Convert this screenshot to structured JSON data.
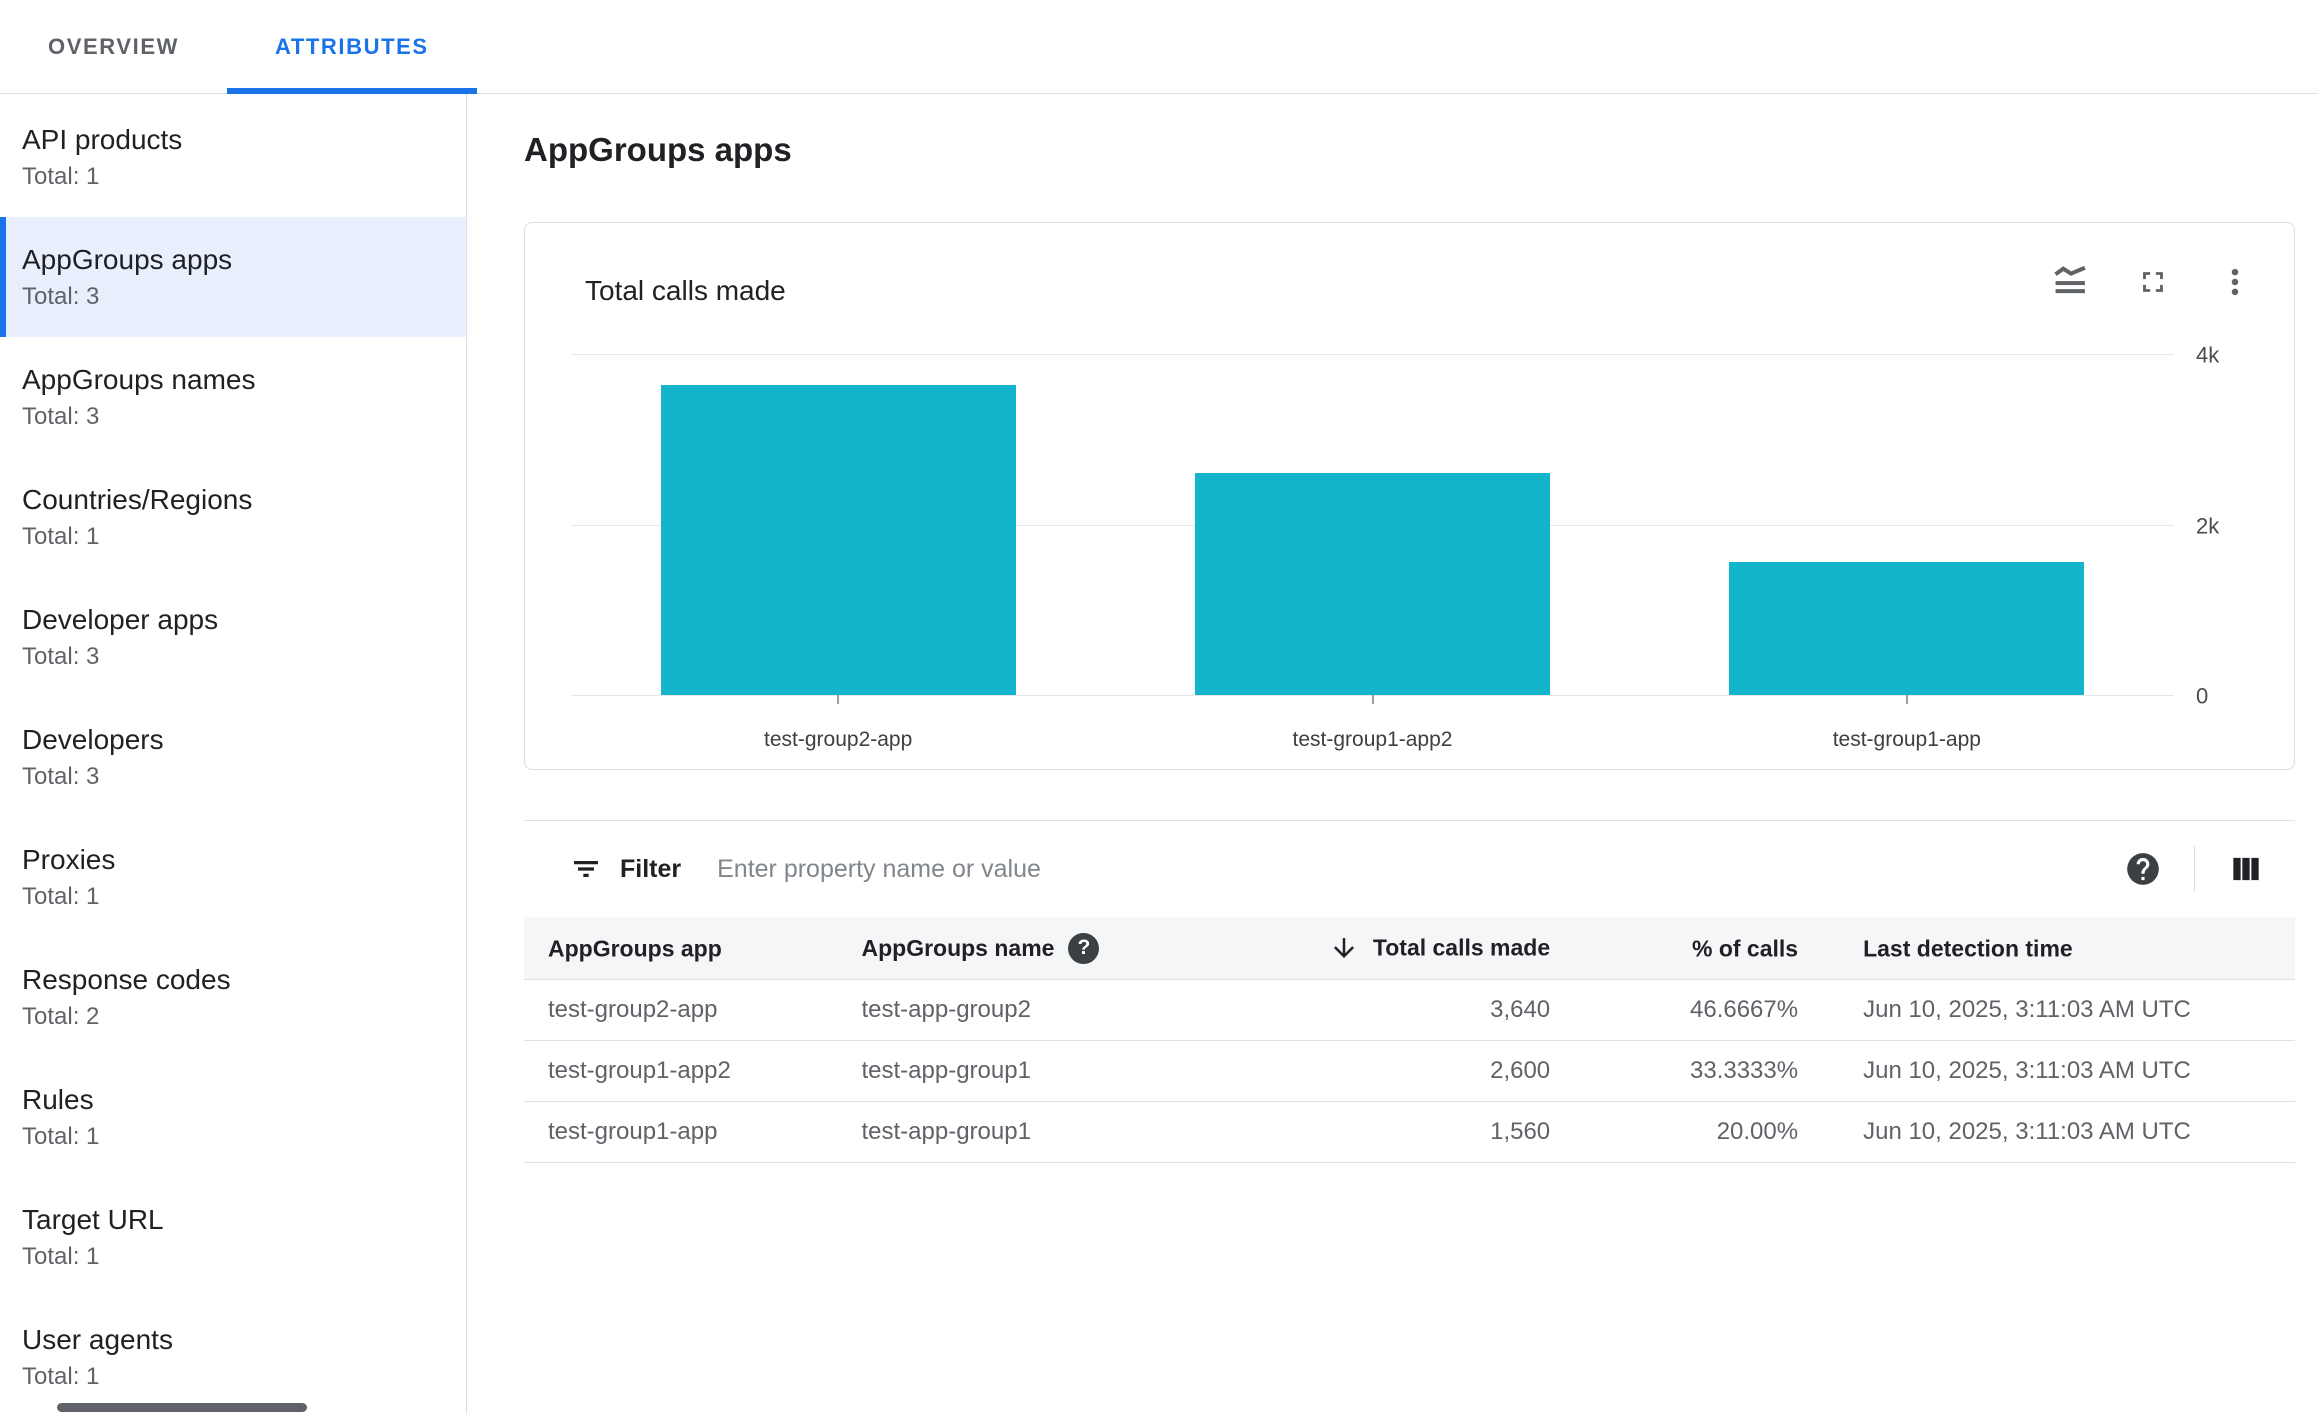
{
  "tabs": {
    "overview": "OVERVIEW",
    "attributes": "ATTRIBUTES"
  },
  "sidebar": {
    "items": [
      {
        "label": "API products",
        "total": "Total: 1",
        "selected": false
      },
      {
        "label": "AppGroups apps",
        "total": "Total: 3",
        "selected": true
      },
      {
        "label": "AppGroups names",
        "total": "Total: 3",
        "selected": false
      },
      {
        "label": "Countries/Regions",
        "total": "Total: 1",
        "selected": false
      },
      {
        "label": "Developer apps",
        "total": "Total: 3",
        "selected": false
      },
      {
        "label": "Developers",
        "total": "Total: 3",
        "selected": false
      },
      {
        "label": "Proxies",
        "total": "Total: 1",
        "selected": false
      },
      {
        "label": "Response codes",
        "total": "Total: 2",
        "selected": false
      },
      {
        "label": "Rules",
        "total": "Total: 1",
        "selected": false
      },
      {
        "label": "Target URL",
        "total": "Total: 1",
        "selected": false
      },
      {
        "label": "User agents",
        "total": "Total: 1",
        "selected": false
      }
    ]
  },
  "page": {
    "title": "AppGroups apps"
  },
  "card": {
    "title": "Total calls made"
  },
  "chart_data": {
    "type": "bar",
    "title": "Total calls made",
    "categories": [
      "test-group2-app",
      "test-group1-app2",
      "test-group1-app"
    ],
    "values": [
      3640,
      2600,
      1560
    ],
    "xlabel": "",
    "ylabel": "",
    "ylim": [
      0,
      4000
    ],
    "yticks": [
      {
        "value": 4000,
        "label": "4k"
      },
      {
        "value": 2000,
        "label": "2k"
      },
      {
        "value": 0,
        "label": "0"
      }
    ],
    "grid": true,
    "legend_position": "none",
    "bar_color": "#12b5cb",
    "axis_label_side": "right"
  },
  "filter": {
    "label": "Filter",
    "placeholder": "Enter property name or value"
  },
  "table": {
    "columns": [
      "AppGroups app",
      "AppGroups name",
      "Total calls made",
      "% of calls",
      "Last detection time"
    ],
    "sorted_column": "Total calls made",
    "sort_direction": "descending",
    "rows": [
      {
        "app": "test-group2-app",
        "name": "test-app-group2",
        "calls": "3,640",
        "pct": "46.6667%",
        "last_detection": "Jun 10, 2025, 3:11:03 AM UTC"
      },
      {
        "app": "test-group1-app2",
        "name": "test-app-group1",
        "calls": "2,600",
        "pct": "33.3333%",
        "last_detection": "Jun 10, 2025, 3:11:03 AM UTC"
      },
      {
        "app": "test-group1-app",
        "name": "test-app-group1",
        "calls": "1,560",
        "pct": "20.00%",
        "last_detection": "Jun 10, 2025, 3:11:03 AM UTC"
      }
    ]
  },
  "colors": {
    "accent_blue": "#1a73e8",
    "selected_item_bg": "#e9f0fd",
    "bar_teal": "#12b5cb",
    "border": "#e0e0e0",
    "table_header_bg": "#f5f6f7",
    "text_primary": "#202124",
    "text_secondary": "#5f6368"
  }
}
